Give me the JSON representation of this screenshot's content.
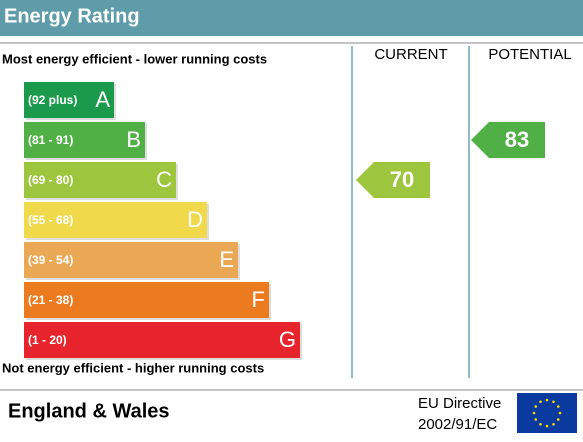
{
  "chart_data": {
    "type": "energy-rating",
    "title": "Energy Rating",
    "top_note": "Most energy efficient - lower running costs",
    "bottom_note": "Not energy efficient - higher running costs",
    "columns": [
      "CURRENT",
      "POTENTIAL"
    ],
    "bands": [
      {
        "range": "(92 plus)",
        "letter": "A",
        "color": "#1b9a4b"
      },
      {
        "range": "(81 - 91)",
        "letter": "B",
        "color": "#50b045"
      },
      {
        "range": "(69 - 80)",
        "letter": "C",
        "color": "#9dc53e"
      },
      {
        "range": "(55 - 68)",
        "letter": "D",
        "color": "#f0d94a"
      },
      {
        "range": "(39 - 54)",
        "letter": "E",
        "color": "#eaa854"
      },
      {
        "range": "(21 - 38)",
        "letter": "F",
        "color": "#ec7a1e"
      },
      {
        "range": "(1 - 20)",
        "letter": "G",
        "color": "#e7242b"
      }
    ],
    "current": 70,
    "potential": 83,
    "footer": {
      "region": "England & Wales",
      "directive_line1": "EU Directive",
      "directive_line2": "2002/91/EC"
    }
  }
}
